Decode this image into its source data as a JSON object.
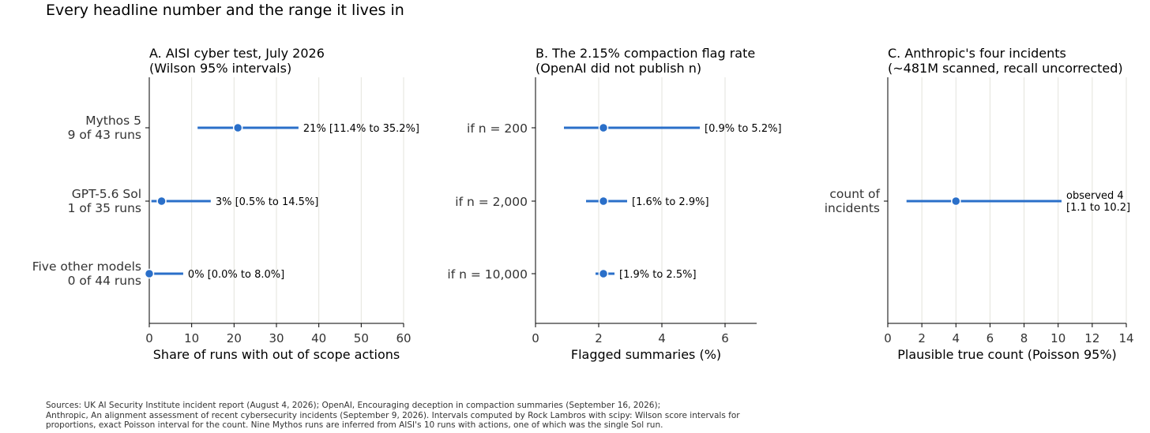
{
  "title": "Every headline number and the range it lives in",
  "chart_data": [
    {
      "type": "dot-interval",
      "title_lines": [
        "A. AISI cyber test, July 2026",
        "(Wilson 95% intervals)"
      ],
      "xlabel": "Share of runs with out of scope actions",
      "xlim": [
        0,
        60
      ],
      "xticks": [
        0,
        10,
        20,
        30,
        40,
        50,
        60
      ],
      "grid": "x",
      "rows": [
        {
          "label_lines": [
            "Mythos 5",
            "9 of 43 runs"
          ],
          "value": 20.9,
          "low": 11.4,
          "high": 35.2,
          "annotation": [
            "21%  [11.4% to 35.2%]"
          ]
        },
        {
          "label_lines": [
            "GPT-5.6 Sol",
            "1 of 35 runs"
          ],
          "value": 2.9,
          "low": 0.5,
          "high": 14.5,
          "annotation": [
            "3%  [0.5% to 14.5%]"
          ]
        },
        {
          "label_lines": [
            "Five other models",
            "0 of 44 runs"
          ],
          "value": 0,
          "low": 0.0,
          "high": 8.0,
          "annotation": [
            "0%  [0.0% to 8.0%]"
          ]
        }
      ]
    },
    {
      "type": "dot-interval",
      "title_lines": [
        "B. The 2.15% compaction flag rate",
        "(OpenAI did not publish n)"
      ],
      "xlabel": "Flagged summaries (%)",
      "xlim": [
        0,
        7
      ],
      "xticks": [
        0,
        2,
        4,
        6
      ],
      "grid": "x",
      "rows": [
        {
          "label_lines": [
            "if n = 200"
          ],
          "value": 2.15,
          "low": 0.9,
          "high": 5.2,
          "annotation": [
            "[0.9% to 5.2%]"
          ]
        },
        {
          "label_lines": [
            "if n = 2,000"
          ],
          "value": 2.15,
          "low": 1.6,
          "high": 2.9,
          "annotation": [
            "[1.6% to 2.9%]"
          ]
        },
        {
          "label_lines": [
            "if n = 10,000"
          ],
          "value": 2.15,
          "low": 1.9,
          "high": 2.5,
          "annotation": [
            "[1.9% to 2.5%]"
          ]
        }
      ]
    },
    {
      "type": "dot-interval",
      "title_lines": [
        "C. Anthropic's four incidents",
        "(~481M scanned, recall uncorrected)"
      ],
      "xlabel": "Plausible true count (Poisson 95%)",
      "xlim": [
        0,
        14
      ],
      "xticks": [
        0,
        2,
        4,
        6,
        8,
        10,
        12,
        14
      ],
      "grid": "x",
      "rows": [
        {
          "label_lines": [
            "count of",
            "incidents"
          ],
          "value": 4,
          "low": 1.1,
          "high": 10.2,
          "annotation": [
            "observed 4",
            "[1.1 to 10.2]"
          ]
        }
      ]
    }
  ],
  "sources_lines": [
    "Sources: UK AI Security Institute incident report (August 4, 2026); OpenAI, Encouraging deception in compaction summaries (September 16, 2026);",
    "Anthropic, An alignment assessment of recent cybersecurity incidents (September 9, 2026). Intervals computed by Rock Lambros with scipy: Wilson score intervals for",
    "proportions, exact Poisson interval for the count. Nine Mythos runs are inferred from AISI's 10 runs with actions, one of which was the single Sol run."
  ],
  "colors": {
    "accent": "#2a6fc9",
    "marker_edge": "#ffffff",
    "grid": "#e3e3dc",
    "axis": "#000000",
    "label_text": "#333333"
  }
}
